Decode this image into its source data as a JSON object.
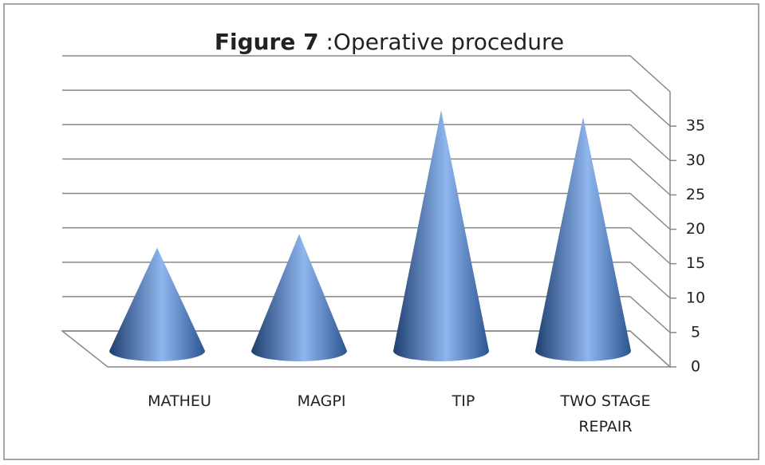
{
  "chart_data": {
    "type": "cone",
    "title_bold": "Figure 7",
    "title": ":Operative procedure",
    "categories": [
      "MATHEU",
      "MAGPI",
      "TIP",
      "TWO STAGE REPAIR"
    ],
    "values": [
      15,
      17,
      35,
      34
    ],
    "color": "#4f81bd",
    "ylim": [
      0,
      40
    ],
    "yticks": [
      0,
      5,
      10,
      15,
      20,
      25,
      30,
      35
    ],
    "grid": true
  }
}
